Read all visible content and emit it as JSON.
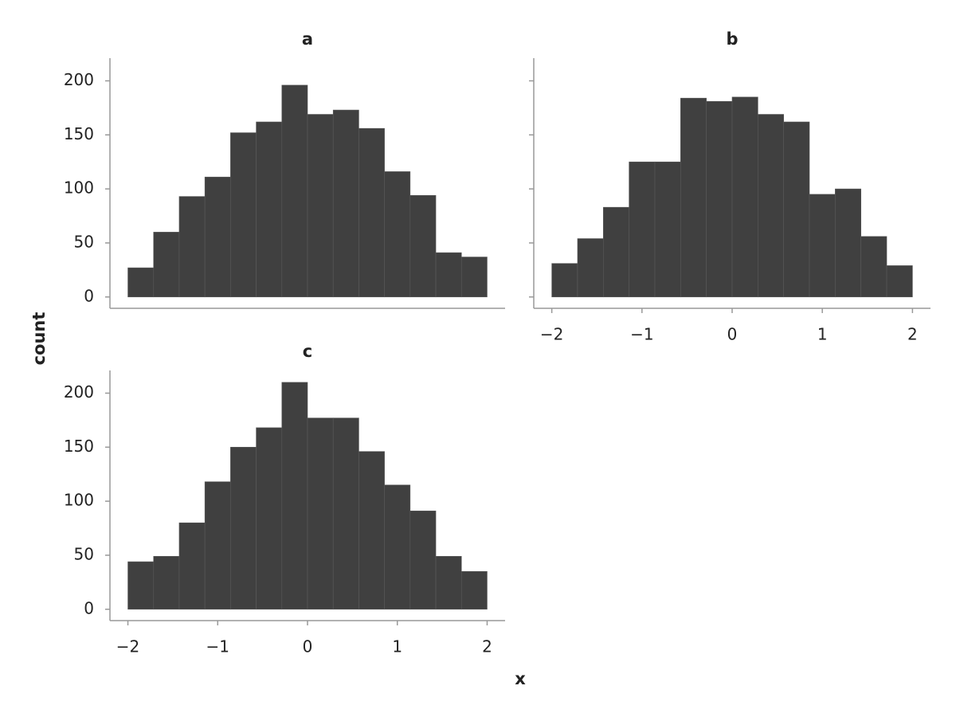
{
  "chart_data": {
    "type": "histogram",
    "xlabel": "x",
    "ylabel": "count",
    "color": "#404040",
    "bins": [
      -2,
      -1.7142857,
      -1.4285714,
      -1.1428571,
      -0.8571429,
      -0.5714286,
      -0.2857143,
      0,
      0.2857143,
      0.5714286,
      0.8571429,
      1.1428571,
      1.4285714,
      1.7142857,
      2
    ],
    "xlim": [
      -2.2,
      2.2
    ],
    "ylim": [
      -10.5,
      221
    ],
    "xticks": [
      {
        "value": -2,
        "label": "−2"
      },
      {
        "value": -1,
        "label": "−1"
      },
      0,
      1,
      2
    ],
    "yticks": [
      0,
      50,
      100,
      150,
      200
    ],
    "facets": [
      {
        "title": "a",
        "counts": [
          27,
          60,
          93,
          111,
          152,
          162,
          196,
          169,
          173,
          156,
          116,
          94,
          41,
          37
        ]
      },
      {
        "title": "b",
        "counts": [
          31,
          54,
          83,
          125,
          125,
          184,
          181,
          185,
          169,
          162,
          95,
          100,
          56,
          29
        ]
      },
      {
        "title": "c",
        "counts": [
          44,
          49,
          80,
          118,
          150,
          168,
          210,
          177,
          177,
          146,
          115,
          91,
          49,
          35
        ]
      }
    ]
  }
}
